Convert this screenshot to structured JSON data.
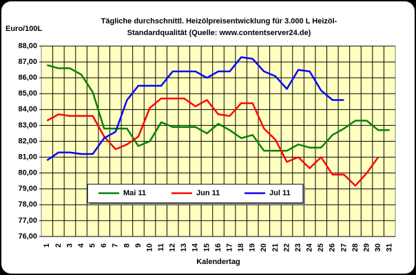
{
  "chart_data": {
    "type": "line",
    "title": "Tägliche durchschnittl. Heizölpreisentwicklung für 3.000 L Heizöl-",
    "subtitle": "Standardqualität (Quelle: www.contentserver24.de)",
    "y_label": "Euro/100L",
    "x_label": "Kalendertag",
    "categories": [
      "1",
      "2",
      "3",
      "4",
      "5",
      "6",
      "7",
      "8",
      "9",
      "10",
      "11",
      "12",
      "13",
      "14",
      "15",
      "16",
      "17",
      "18",
      "19",
      "20",
      "21",
      "22",
      "23",
      "24",
      "25",
      "26",
      "27",
      "28",
      "29",
      "30",
      "31"
    ],
    "series": [
      {
        "name": "Mai 11",
        "color": "#008000",
        "values": [
          86.8,
          86.6,
          86.6,
          86.2,
          85.1,
          82.8,
          82.8,
          82.8,
          81.7,
          82.0,
          83.2,
          82.9,
          82.9,
          82.9,
          82.5,
          83.1,
          82.7,
          82.2,
          82.4,
          81.4,
          81.4,
          81.4,
          81.8,
          81.6,
          81.6,
          82.4,
          82.8,
          83.3,
          83.3,
          82.7,
          82.7
        ]
      },
      {
        "name": "Jun 11",
        "color": "#ff0000",
        "values": [
          83.3,
          83.7,
          83.6,
          83.6,
          83.6,
          82.3,
          81.5,
          81.8,
          82.3,
          84.1,
          84.7,
          84.7,
          84.7,
          84.2,
          84.6,
          83.7,
          83.6,
          84.4,
          84.4,
          82.8,
          82.1,
          80.7,
          81.0,
          80.3,
          81.0,
          79.9,
          79.9,
          79.2,
          80.0,
          81.0,
          null
        ]
      },
      {
        "name": "Jul 11",
        "color": "#0000ff",
        "values": [
          80.8,
          81.3,
          81.3,
          81.2,
          81.2,
          82.2,
          82.6,
          84.6,
          85.5,
          85.5,
          85.5,
          86.4,
          86.4,
          86.4,
          86.0,
          86.4,
          86.4,
          87.3,
          87.2,
          86.4,
          86.1,
          85.3,
          86.5,
          86.4,
          85.2,
          84.6,
          84.6,
          null,
          null,
          null,
          null
        ]
      }
    ],
    "ylim": [
      76,
      88
    ],
    "yticks": [
      {
        "value": 76,
        "label": "76,00"
      },
      {
        "value": 77,
        "label": "77,00"
      },
      {
        "value": 78,
        "label": "78,00"
      },
      {
        "value": 79,
        "label": "79,00"
      },
      {
        "value": 80,
        "label": "80,00"
      },
      {
        "value": 81,
        "label": "81,00"
      },
      {
        "value": 82,
        "label": "82,00"
      },
      {
        "value": 83,
        "label": "83,00"
      },
      {
        "value": 84,
        "label": "84,00"
      },
      {
        "value": 85,
        "label": "85,00"
      },
      {
        "value": 86,
        "label": "86,00"
      },
      {
        "value": 87,
        "label": "87,00"
      },
      {
        "value": 88,
        "label": "88,00"
      }
    ],
    "grid": true
  }
}
